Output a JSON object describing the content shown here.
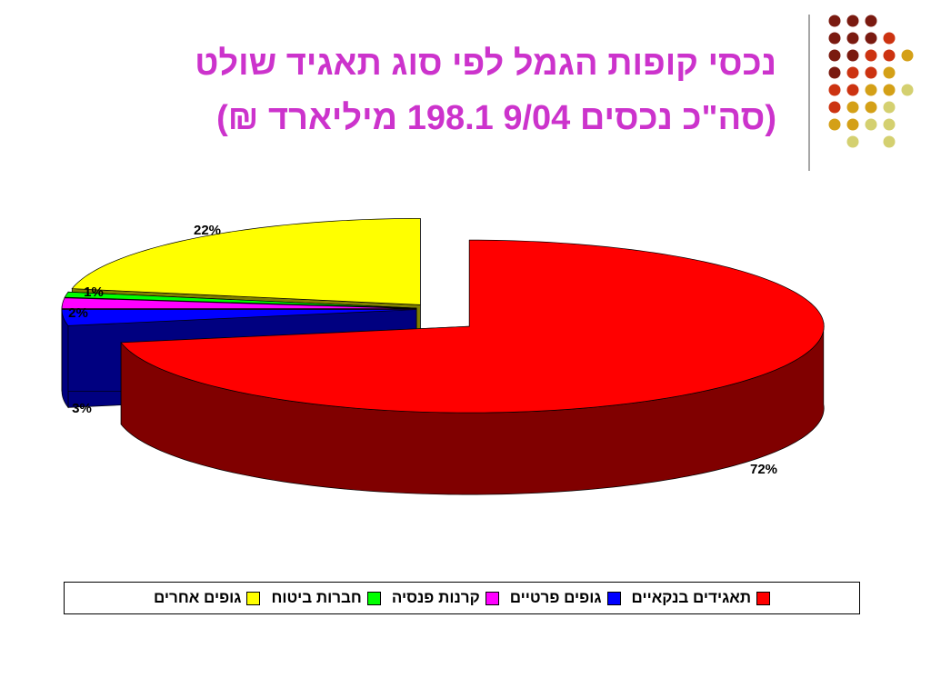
{
  "chart_data": {
    "type": "pie3d",
    "title": "נכסי קופות הגמל לפי סוג תאגיד שולט",
    "subtitle": "(סה\"כ נכסים 9/04 198.1 מיליארד ₪)",
    "title_color": "#cc33cc",
    "categories": [
      "תאגידים בנקאיים",
      "גופים פרטיים",
      "קרנות פנסיה",
      "חברות ביטוח",
      "גופים אחרים"
    ],
    "values": [
      72,
      3,
      2,
      1,
      22
    ],
    "value_labels": [
      "72%",
      "3%",
      "2%",
      "1%",
      "22%"
    ],
    "colors": [
      "#ff0000",
      "#0000ff",
      "#ff00ff",
      "#00ff00",
      "#ffff00"
    ]
  }
}
